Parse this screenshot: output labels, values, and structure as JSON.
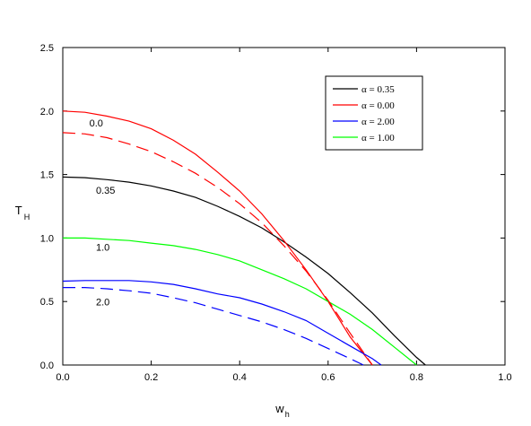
{
  "chart_data": {
    "type": "line",
    "xlabel": "w",
    "xlabel_sub": "h",
    "ylabel": "T",
    "ylabel_sub": "H",
    "xlim": [
      0.0,
      1.0
    ],
    "ylim": [
      0.0,
      2.5
    ],
    "xticks": [
      "0.0",
      "0.2",
      "0.4",
      "0.6",
      "0.8",
      "1.0"
    ],
    "yticks": [
      "0.0",
      "0.5",
      "1.0",
      "1.5",
      "2.0",
      "2.5"
    ],
    "grid": false,
    "legend_position": "top-right",
    "series": [
      {
        "name": "α = 0.35",
        "color": "#000000",
        "dashed": false,
        "x": [
          0.0,
          0.05,
          0.1,
          0.15,
          0.2,
          0.25,
          0.3,
          0.35,
          0.4,
          0.45,
          0.5,
          0.55,
          0.6,
          0.65,
          0.7,
          0.75,
          0.8,
          0.82
        ],
        "y": [
          1.48,
          1.475,
          1.46,
          1.44,
          1.41,
          1.37,
          1.32,
          1.25,
          1.17,
          1.08,
          0.97,
          0.85,
          0.72,
          0.57,
          0.41,
          0.23,
          0.06,
          0.0
        ]
      },
      {
        "name": "α = 0.00",
        "color": "#ff0000",
        "dashed": false,
        "x": [
          0.0,
          0.05,
          0.1,
          0.15,
          0.2,
          0.25,
          0.3,
          0.35,
          0.4,
          0.45,
          0.5,
          0.55,
          0.6,
          0.65,
          0.7
        ],
        "y": [
          2.0,
          1.99,
          1.96,
          1.92,
          1.86,
          1.77,
          1.66,
          1.52,
          1.37,
          1.19,
          0.98,
          0.75,
          0.5,
          0.22,
          0.0
        ]
      },
      {
        "name": "α = 2.00",
        "color": "#0000ff",
        "dashed": false,
        "x": [
          0.0,
          0.05,
          0.1,
          0.15,
          0.2,
          0.25,
          0.3,
          0.35,
          0.4,
          0.45,
          0.5,
          0.55,
          0.6,
          0.65,
          0.7,
          0.72
        ],
        "y": [
          0.66,
          0.665,
          0.665,
          0.665,
          0.655,
          0.635,
          0.6,
          0.56,
          0.53,
          0.48,
          0.42,
          0.35,
          0.25,
          0.15,
          0.05,
          0.0
        ]
      },
      {
        "name": "α = 1.00",
        "color": "#00ff00",
        "dashed": false,
        "x": [
          0.0,
          0.05,
          0.1,
          0.15,
          0.2,
          0.25,
          0.3,
          0.35,
          0.4,
          0.45,
          0.5,
          0.55,
          0.6,
          0.65,
          0.7,
          0.75,
          0.8
        ],
        "y": [
          1.0,
          1.0,
          0.99,
          0.98,
          0.96,
          0.94,
          0.91,
          0.87,
          0.82,
          0.75,
          0.68,
          0.6,
          0.5,
          0.4,
          0.28,
          0.14,
          0.0
        ]
      },
      {
        "color": "#ff0000",
        "dashed": true,
        "x": [
          0.0,
          0.05,
          0.1,
          0.15,
          0.2,
          0.25,
          0.3,
          0.35,
          0.4,
          0.45,
          0.5,
          0.55,
          0.6,
          0.65,
          0.7
        ],
        "y": [
          1.83,
          1.82,
          1.79,
          1.74,
          1.68,
          1.6,
          1.51,
          1.4,
          1.27,
          1.12,
          0.94,
          0.74,
          0.51,
          0.25,
          0.0
        ]
      },
      {
        "color": "#0000ff",
        "dashed": true,
        "x": [
          0.0,
          0.05,
          0.1,
          0.15,
          0.2,
          0.25,
          0.3,
          0.35,
          0.4,
          0.45,
          0.5,
          0.55,
          0.6,
          0.65,
          0.68
        ],
        "y": [
          0.61,
          0.61,
          0.6,
          0.585,
          0.565,
          0.53,
          0.49,
          0.44,
          0.39,
          0.34,
          0.28,
          0.21,
          0.13,
          0.05,
          0.0
        ]
      }
    ],
    "curve_labels": [
      {
        "text": "0.0",
        "x": 0.06,
        "y": 1.88
      },
      {
        "text": "0.35",
        "x": 0.075,
        "y": 1.35
      },
      {
        "text": "1.0",
        "x": 0.075,
        "y": 0.9
      },
      {
        "text": "2.0",
        "x": 0.075,
        "y": 0.47
      }
    ]
  }
}
